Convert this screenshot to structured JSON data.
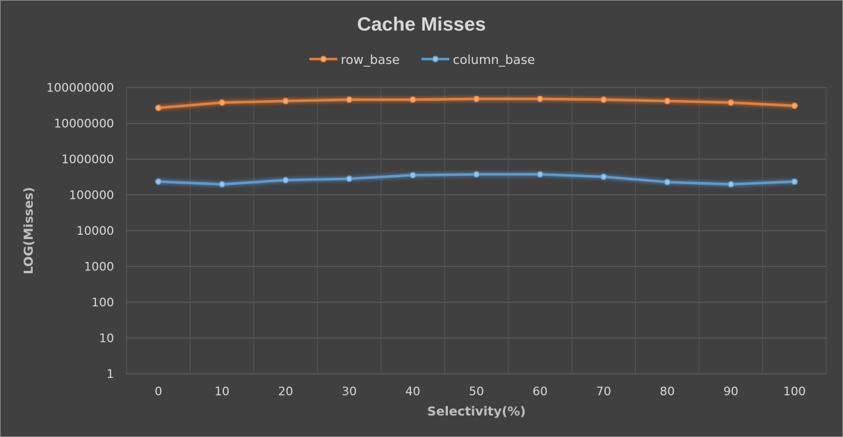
{
  "chart_data": {
    "type": "line",
    "title": "Cache Misses",
    "xlabel": "Selectivity(%)",
    "ylabel": "LOG(Misses)",
    "y_scale": "log",
    "ylim": [
      1,
      100000000
    ],
    "x": [
      0,
      10,
      20,
      30,
      40,
      50,
      60,
      70,
      80,
      90,
      100
    ],
    "x_tick_labels": [
      "0",
      "10",
      "20",
      "30",
      "40",
      "50",
      "60",
      "70",
      "80",
      "90",
      "100"
    ],
    "y_tick_labels": [
      "1",
      "10",
      "100",
      "1000",
      "10000",
      "100000",
      "1000000",
      "10000000",
      "100000000"
    ],
    "grid": "on",
    "legend_position": "top",
    "series": [
      {
        "name": "row_base",
        "color": "#ed7d31",
        "values": [
          27000000,
          38000000,
          42000000,
          46000000,
          46000000,
          48000000,
          48000000,
          46000000,
          42000000,
          38000000,
          31000000
        ]
      },
      {
        "name": "column_base",
        "color": "#5b9bd5",
        "values": [
          235000,
          198000,
          258000,
          282000,
          355000,
          375000,
          375000,
          322000,
          228000,
          198000,
          235000
        ]
      }
    ]
  }
}
